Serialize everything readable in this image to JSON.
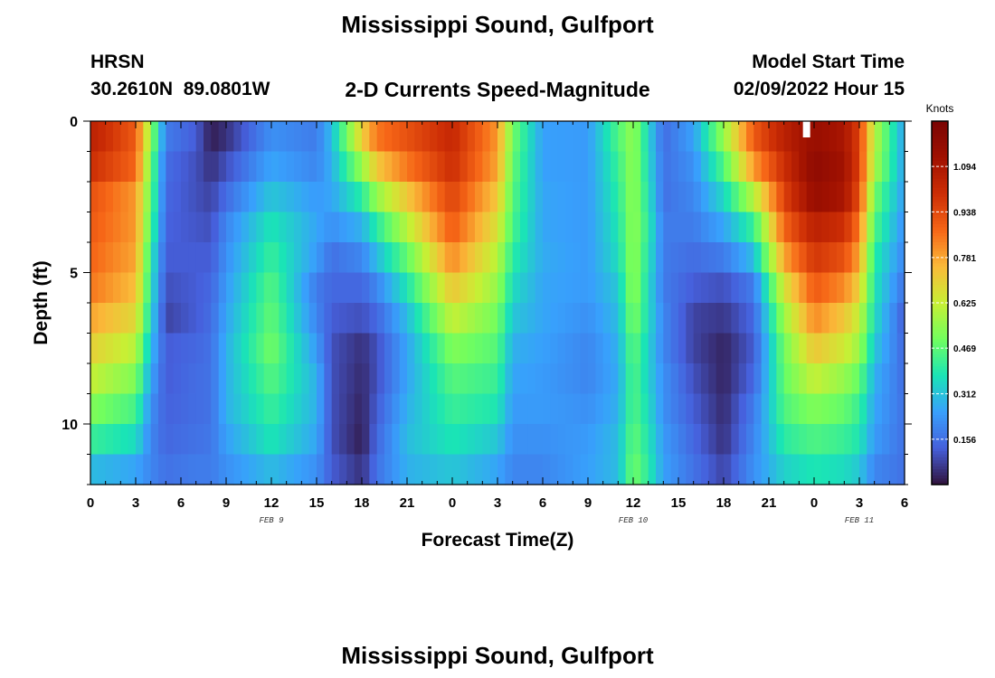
{
  "header": {
    "title": "Mississippi Sound, Gulfport",
    "station_code": "HRSN",
    "coords": "30.2610N  89.0801W",
    "subtitle": "2-D Currents Speed-Magnitude",
    "model_start_label": "Model Start Time",
    "model_start_value": "02/09/2022 Hour 15"
  },
  "footer": {
    "next_title": "Mississippi Sound, Gulfport"
  },
  "colors": {
    "cmap_low": "#30123b",
    "cmap_high": "#7a0403",
    "nowcast_marker": "#ffffff"
  },
  "chart_data": {
    "type": "heatmap",
    "title": "2-D Currents Speed-Magnitude",
    "xlabel": "Forecast Time(Z)",
    "ylabel": "Depth (ft)",
    "colorbar_label": "Knots",
    "colorbar_ticks": [
      0.156,
      0.312,
      0.469,
      0.625,
      0.781,
      0.938,
      1.094
    ],
    "colorbar_tick_labels": [
      "0.156",
      "0.312",
      "0.469",
      "0.625",
      "0.781",
      "0.938",
      "1.094"
    ],
    "vmin": 0.0,
    "vmax": 1.25,
    "xlim_hours": [
      0,
      54
    ],
    "ylim_depth_ft": [
      0,
      12
    ],
    "y_reversed": true,
    "x_ticks_hours": [
      0,
      3,
      6,
      9,
      12,
      15,
      18,
      21,
      24,
      27,
      30,
      33,
      36,
      39,
      42,
      45,
      48,
      51,
      54
    ],
    "x_tick_labels": [
      "0",
      "3",
      "6",
      "9",
      "12",
      "15",
      "18",
      "21",
      "0",
      "3",
      "6",
      "9",
      "12",
      "15",
      "18",
      "21",
      "0",
      "3",
      "6"
    ],
    "y_ticks_ft": [
      0,
      5,
      10
    ],
    "y_tick_labels": [
      "0",
      "5",
      "10"
    ],
    "day_labels": [
      {
        "text": "FEB 9",
        "hour": 12
      },
      {
        "text": "FEB 10",
        "hour": 36
      },
      {
        "text": "FEB 11",
        "hour": 51
      }
    ],
    "nowcast_marker_hour": 47.5,
    "depth_levels_ft": [
      0.5,
      1.5,
      2.5,
      3.5,
      4.5,
      5.5,
      6.5,
      7.5,
      8.5,
      9.5,
      10.5,
      11.5
    ],
    "time_keyframes_hours": [
      0,
      3,
      4,
      5,
      7,
      8,
      9,
      12,
      15,
      16,
      18,
      19,
      21,
      24,
      27,
      28,
      30,
      33,
      35,
      36,
      37,
      38,
      40,
      42,
      44,
      46,
      48,
      50,
      51,
      52,
      54
    ],
    "speed_knots": [
      [
        1.05,
        1.0,
        0.92,
        0.9,
        0.88,
        0.85,
        0.78,
        0.7,
        0.62,
        0.52,
        0.42,
        0.3
      ],
      [
        0.9,
        0.88,
        0.8,
        0.8,
        0.78,
        0.74,
        0.68,
        0.6,
        0.52,
        0.44,
        0.36,
        0.26
      ],
      [
        0.55,
        0.5,
        0.48,
        0.45,
        0.4,
        0.38,
        0.35,
        0.3,
        0.26,
        0.22,
        0.2,
        0.2
      ],
      [
        0.18,
        0.15,
        0.14,
        0.13,
        0.12,
        0.1,
        0.08,
        0.12,
        0.12,
        0.13,
        0.14,
        0.16
      ],
      [
        0.12,
        0.1,
        0.1,
        0.11,
        0.12,
        0.12,
        0.12,
        0.14,
        0.15,
        0.15,
        0.16,
        0.18
      ],
      [
        0.02,
        0.05,
        0.08,
        0.1,
        0.12,
        0.14,
        0.15,
        0.16,
        0.16,
        0.16,
        0.17,
        0.18
      ],
      [
        0.05,
        0.1,
        0.15,
        0.2,
        0.22,
        0.24,
        0.26,
        0.28,
        0.28,
        0.28,
        0.25,
        0.22
      ],
      [
        0.22,
        0.26,
        0.32,
        0.38,
        0.42,
        0.46,
        0.48,
        0.5,
        0.46,
        0.42,
        0.38,
        0.3
      ],
      [
        0.18,
        0.2,
        0.24,
        0.26,
        0.24,
        0.18,
        0.2,
        0.24,
        0.28,
        0.28,
        0.26,
        0.22
      ],
      [
        0.3,
        0.28,
        0.26,
        0.22,
        0.16,
        0.14,
        0.12,
        0.1,
        0.1,
        0.1,
        0.1,
        0.12
      ],
      [
        0.7,
        0.55,
        0.4,
        0.28,
        0.2,
        0.14,
        0.1,
        0.05,
        0.04,
        0.03,
        0.02,
        0.05
      ],
      [
        0.85,
        0.72,
        0.55,
        0.4,
        0.3,
        0.2,
        0.14,
        0.1,
        0.1,
        0.12,
        0.14,
        0.16
      ],
      [
        0.92,
        0.85,
        0.72,
        0.6,
        0.48,
        0.38,
        0.3,
        0.26,
        0.26,
        0.28,
        0.3,
        0.28
      ],
      [
        1.02,
        1.0,
        0.95,
        0.9,
        0.82,
        0.72,
        0.62,
        0.52,
        0.46,
        0.42,
        0.38,
        0.32
      ],
      [
        0.8,
        0.78,
        0.72,
        0.66,
        0.6,
        0.55,
        0.5,
        0.46,
        0.42,
        0.38,
        0.32,
        0.26
      ],
      [
        0.5,
        0.48,
        0.46,
        0.44,
        0.4,
        0.36,
        0.32,
        0.28,
        0.26,
        0.24,
        0.22,
        0.2
      ],
      [
        0.25,
        0.25,
        0.26,
        0.26,
        0.27,
        0.26,
        0.26,
        0.25,
        0.24,
        0.24,
        0.22,
        0.2
      ],
      [
        0.24,
        0.24,
        0.24,
        0.24,
        0.24,
        0.24,
        0.22,
        0.2,
        0.2,
        0.22,
        0.24,
        0.25
      ],
      [
        0.45,
        0.42,
        0.4,
        0.38,
        0.36,
        0.32,
        0.3,
        0.28,
        0.27,
        0.28,
        0.3,
        0.3
      ],
      [
        0.55,
        0.55,
        0.55,
        0.55,
        0.55,
        0.55,
        0.52,
        0.48,
        0.46,
        0.46,
        0.48,
        0.5
      ],
      [
        0.35,
        0.36,
        0.38,
        0.4,
        0.38,
        0.36,
        0.36,
        0.34,
        0.34,
        0.36,
        0.38,
        0.4
      ],
      [
        0.15,
        0.16,
        0.16,
        0.18,
        0.18,
        0.18,
        0.2,
        0.2,
        0.22,
        0.22,
        0.24,
        0.25
      ],
      [
        0.25,
        0.22,
        0.2,
        0.18,
        0.15,
        0.12,
        0.08,
        0.08,
        0.1,
        0.12,
        0.14,
        0.16
      ],
      [
        0.55,
        0.45,
        0.35,
        0.26,
        0.18,
        0.1,
        0.06,
        0.03,
        0.03,
        0.04,
        0.05,
        0.08
      ],
      [
        0.9,
        0.8,
        0.6,
        0.42,
        0.3,
        0.18,
        0.14,
        0.12,
        0.14,
        0.18,
        0.2,
        0.22
      ],
      [
        1.05,
        1.0,
        0.95,
        0.88,
        0.78,
        0.65,
        0.56,
        0.5,
        0.48,
        0.45,
        0.4,
        0.34
      ],
      [
        1.15,
        1.18,
        1.15,
        1.05,
        0.98,
        0.9,
        0.82,
        0.72,
        0.62,
        0.52,
        0.45,
        0.38
      ],
      [
        1.1,
        1.12,
        1.1,
        1.0,
        0.92,
        0.82,
        0.72,
        0.64,
        0.55,
        0.48,
        0.42,
        0.36
      ],
      [
        0.95,
        0.95,
        0.92,
        0.85,
        0.78,
        0.7,
        0.62,
        0.56,
        0.48,
        0.42,
        0.38,
        0.32
      ],
      [
        0.6,
        0.58,
        0.5,
        0.45,
        0.4,
        0.38,
        0.36,
        0.32,
        0.28,
        0.26,
        0.24,
        0.2
      ],
      [
        0.25,
        0.25,
        0.24,
        0.22,
        0.2,
        0.16,
        0.12,
        0.14,
        0.15,
        0.16,
        0.16,
        0.16
      ]
    ]
  }
}
